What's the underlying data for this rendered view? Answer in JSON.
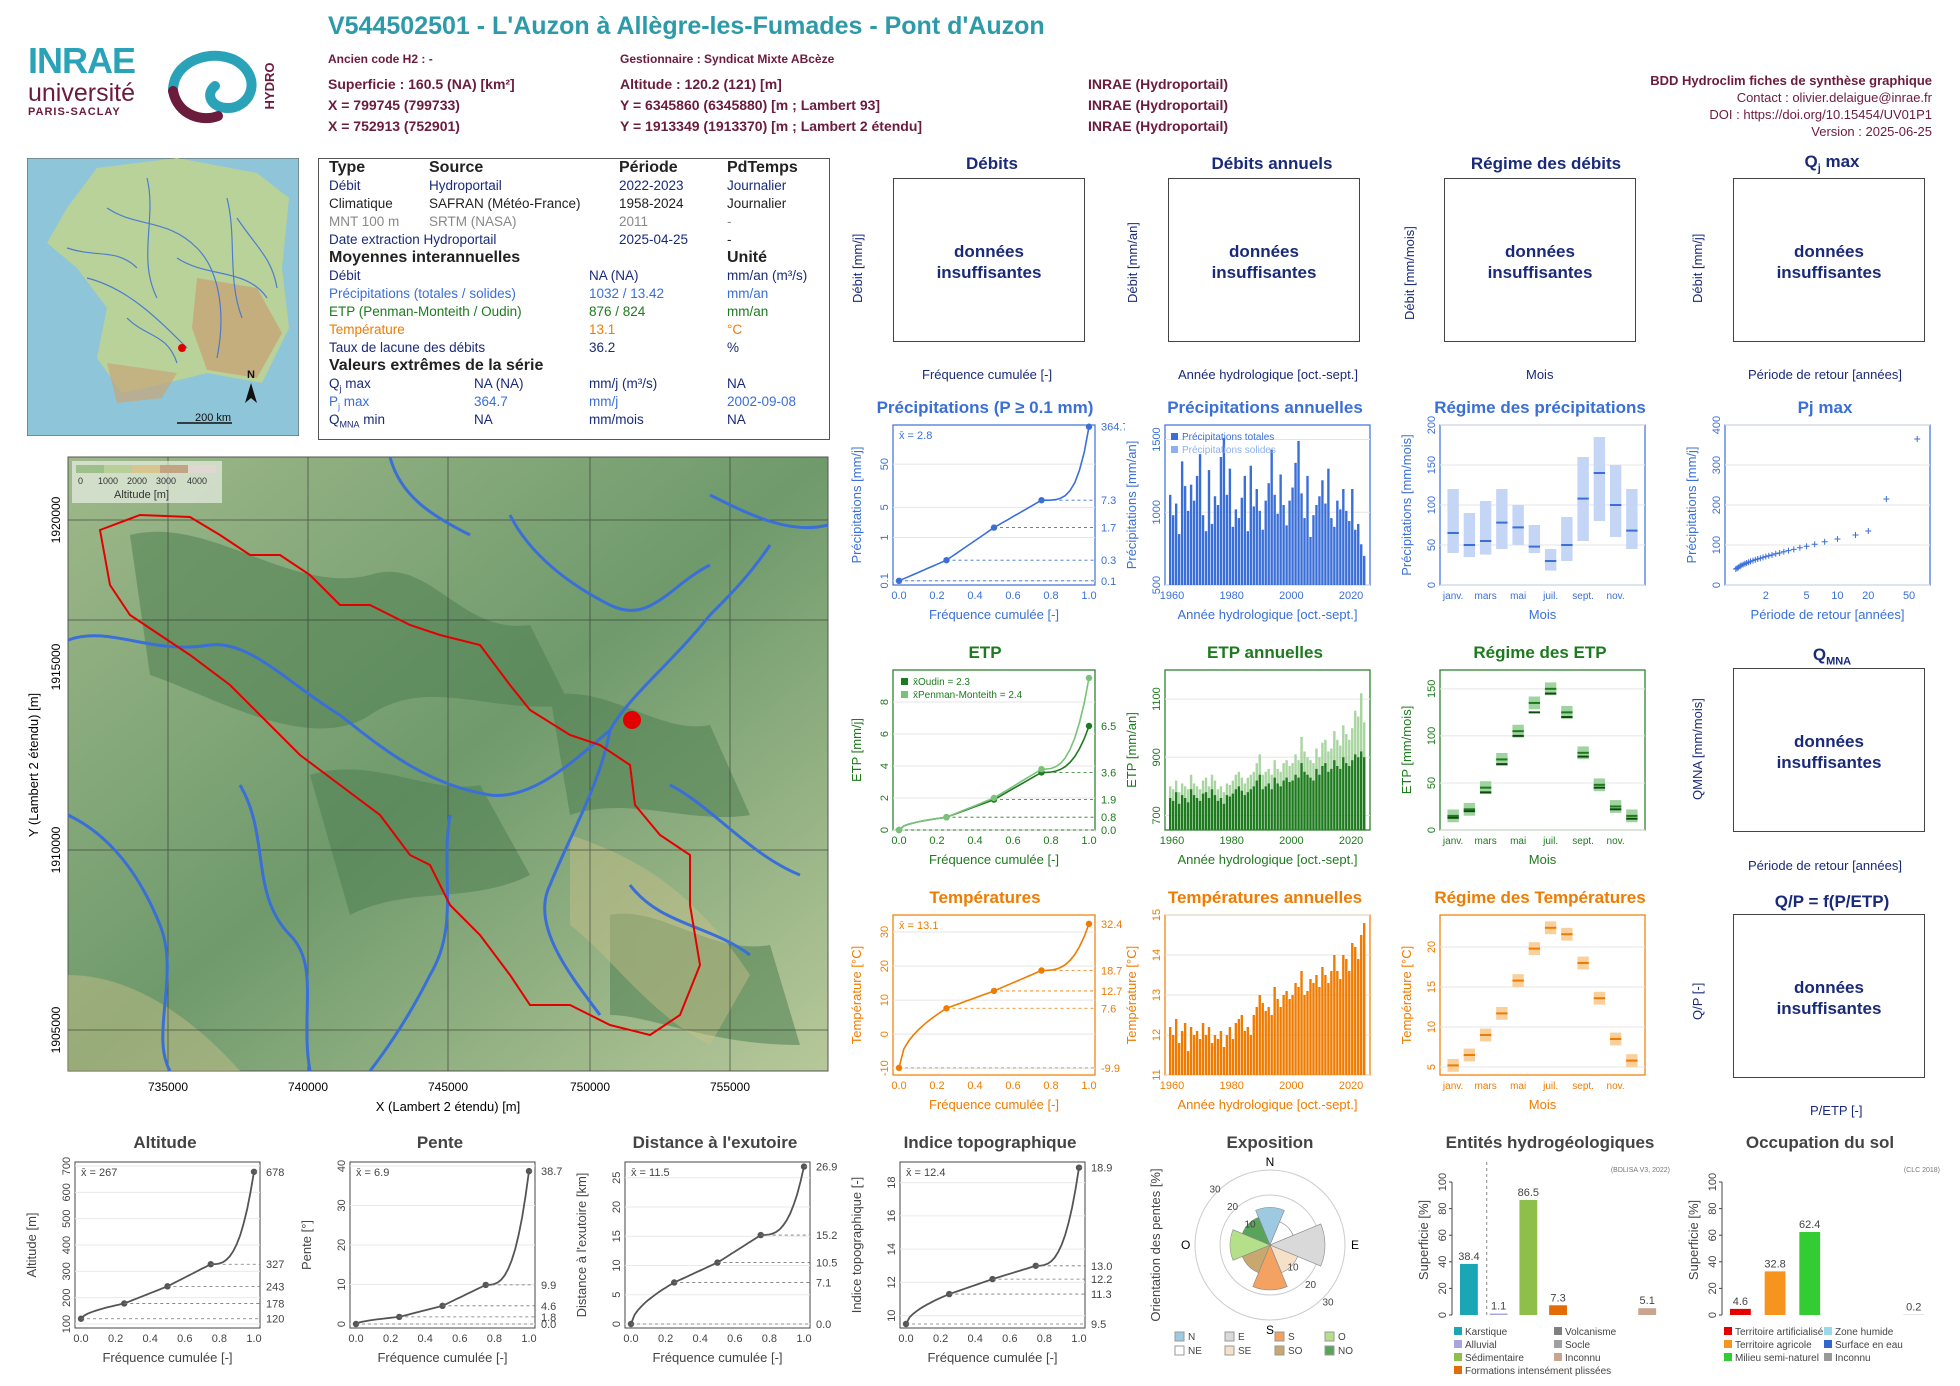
{
  "station": {
    "title": "V544502501 - L'Auzon à Allègre-les-Fumades - Pont d'Auzon",
    "ancien_code": "Ancien code H2 : -",
    "gestionnaire": "Gestionnaire : Syndicat Mixte ABcèze",
    "superficie": "Superficie : 160.5 (NA) [km²]",
    "altitude": "Altitude : 120.2 (121) [m]",
    "x93": "X = 799745 (799733)",
    "y93": "Y = 6345860 (6345880) [m ; Lambert 93]",
    "x2e": "X = 752913 (752901)",
    "y2e": "Y = 1913349 (1913370) [m ; Lambert 2 étendu]",
    "src1": "INRAE (Hydroportail)",
    "src2": "INRAE (Hydroportail)",
    "src3": "INRAE (Hydroportail)"
  },
  "logos": {
    "inrae": "INRAE",
    "univ": "université",
    "univ2": "PARIS-SACLAY",
    "hydro": "HYDRO"
  },
  "credits": {
    "l1": "BDD Hydroclim fiches de synthèse graphique",
    "l2": "Contact : olivier.delaigue@inrae.fr",
    "l3": "DOI : https://doi.org/10.15454/UV01P1",
    "l4": "Version : 2025-06-25"
  },
  "minimap": {
    "scale": "200 km",
    "north": "N"
  },
  "info": {
    "headers": [
      "Type",
      "Source",
      "Période",
      "PdTemps"
    ],
    "rows": [
      [
        "Débit",
        "Hydroportail",
        "2022-2023",
        "Journalier"
      ],
      [
        "Climatique",
        "SAFRAN (Météo-France)",
        "1958-2024",
        "Journalier"
      ],
      [
        "MNT 100 m",
        "SRTM (NASA)",
        "2011",
        "-"
      ],
      [
        "Date extraction Hydroportail",
        "",
        "2025-04-25",
        "-"
      ]
    ],
    "moy_title": "Moyennes interannuelles",
    "unite": "Unité",
    "moy": [
      [
        "Débit",
        "NA (NA)",
        "mm/an (m³/s)"
      ],
      [
        "Précipitations (totales / solides)",
        "1032 / 13.42",
        "mm/an"
      ],
      [
        "ETP (Penman-Monteith / Oudin)",
        "876 / 824",
        "mm/an"
      ],
      [
        "Température",
        "13.1",
        "°C"
      ],
      [
        "Taux de lacune des débits",
        "36.2",
        "%"
      ]
    ],
    "ext_title": "Valeurs extrêmes de la série",
    "ext": [
      [
        "Q",
        "j",
        " max",
        "NA (NA)",
        "mm/j (m³/s)",
        "NA"
      ],
      [
        "P",
        "j",
        " max",
        "364.7",
        "mm/j",
        "2002-09-08"
      ],
      [
        "Q",
        "MNA",
        " min",
        "NA",
        "mm/mois",
        "NA"
      ]
    ]
  },
  "map": {
    "legend_title": "Altitude [m]",
    "legend_ticks": [
      "0",
      "1000",
      "2000",
      "3000",
      "4000"
    ],
    "xlabel": "X (Lambert 2 étendu) [m]",
    "ylabel": "Y (Lambert 2 étendu) [m]",
    "xticks": [
      "735000",
      "740000",
      "745000",
      "750000",
      "755000"
    ],
    "yticks": [
      "1920000",
      "1915000",
      "1910000",
      "1905000"
    ]
  },
  "nodata_msg": [
    "données",
    "insuffisantes"
  ],
  "panels_top": [
    {
      "title": "Débits",
      "ylabel": "Débit [mm/j]",
      "xlabel": "Fréquence cumulée [-]"
    },
    {
      "title": "Débits annuels",
      "ylabel": "Débit [mm/an]",
      "xlabel": "Année hydrologique [oct.-sept.]"
    },
    {
      "title": "Régime des débits",
      "ylabel": "Débit [mm/mois]",
      "xlabel": "Mois"
    },
    {
      "title": "Qj max",
      "ylabel": "Débit [mm/j]",
      "xlabel": "Période de retour [années]"
    }
  ],
  "qmna": {
    "title": "QMNA",
    "ylabel": "QMNA [mm/mois]",
    "xlabel": "Période de retour [années]"
  },
  "qp": {
    "title": "Q/P = f(P/ETP)",
    "ylabel": "Q/P [-]",
    "xlabel": "P/ETP [-]"
  },
  "chart_data": [
    {
      "type": "line",
      "title": "Précipitations (P ≥ 0.1 mm)",
      "xlabel": "Fréquence cumulée [-]",
      "ylabel": "Précipitations [mm/j]",
      "scale": "log",
      "mean_label": "x̄ = 2.8",
      "x": [
        0,
        0.25,
        0.5,
        0.75,
        1.0
      ],
      "y": [
        0.1,
        0.3,
        1.7,
        7.3,
        364.7
      ],
      "yticks": [
        0.1,
        1,
        5,
        50
      ],
      "right_labels": [
        "364.7",
        "7.3",
        "1.7",
        "0.3",
        "0.1"
      ]
    },
    {
      "type": "bar",
      "title": "Précipitations annuelles",
      "xlabel": "Année hydrologique [oct.-sept.]",
      "ylabel": "Précipitations [mm/an]",
      "legend": [
        "Précipitations totales",
        "Précipitations solides"
      ],
      "x_start": 1959,
      "values": [
        1120,
        980,
        1060,
        850,
        1350,
        1180,
        1010,
        1190,
        1080,
        1250,
        1400,
        980,
        870,
        1290,
        920,
        1110,
        1050,
        1380,
        1510,
        1120,
        1300,
        900,
        1020,
        960,
        1100,
        1250,
        870,
        1320,
        1040,
        1160,
        1010,
        880,
        1080,
        1200,
        1430,
        1120,
        990,
        1260,
        1050,
        910,
        1080,
        1170,
        1340,
        1490,
        1130,
        960,
        1250,
        830,
        980,
        1050,
        1110,
        1220,
        1060,
        1300,
        960,
        900,
        1080,
        1020,
        1160,
        1010,
        940,
        1160,
        880,
        920,
        780,
        700
      ],
      "ylim": [
        500,
        1600
      ],
      "yticks": [
        500,
        1000,
        1500
      ],
      "xticks": [
        1960,
        1980,
        2000,
        2020
      ]
    },
    {
      "type": "box",
      "title": "Régime des précipitations",
      "xlabel": "Mois",
      "ylabel": "Précipitations [mm/mois]",
      "categories": [
        "janv.",
        "févr.",
        "mars",
        "avr.",
        "mai",
        "juin",
        "juil.",
        "août",
        "sept.",
        "oct.",
        "nov.",
        "déc."
      ],
      "tick_labels": [
        "janv.",
        "mars",
        "mai",
        "juil.",
        "sept.",
        "nov."
      ],
      "q1": [
        40,
        35,
        38,
        45,
        50,
        40,
        18,
        30,
        55,
        80,
        60,
        45
      ],
      "median": [
        65,
        50,
        55,
        78,
        72,
        48,
        30,
        50,
        108,
        140,
        100,
        68
      ],
      "q3": [
        120,
        90,
        105,
        120,
        100,
        75,
        45,
        85,
        160,
        185,
        150,
        120
      ],
      "ylim": [
        0,
        200
      ],
      "yticks": [
        0,
        50,
        100,
        150,
        200
      ]
    },
    {
      "type": "scatter",
      "title": "Pj max",
      "xlabel": "Période de retour [années]",
      "ylabel": "Précipitations [mm/j]",
      "x": [
        1.02,
        1.05,
        1.08,
        1.12,
        1.15,
        1.2,
        1.25,
        1.3,
        1.36,
        1.42,
        1.5,
        1.58,
        1.67,
        1.77,
        1.88,
        2.0,
        2.14,
        2.3,
        2.5,
        2.73,
        3.0,
        3.33,
        3.75,
        4.3,
        5.0,
        6.0,
        7.5,
        10,
        15,
        20,
        30,
        60
      ],
      "y": [
        40,
        42,
        44,
        47,
        49,
        51,
        53,
        55,
        57,
        59,
        61,
        63,
        65,
        67,
        69,
        71,
        73,
        75,
        78,
        80,
        83,
        86,
        89,
        93,
        97,
        102,
        108,
        115,
        125,
        135,
        215,
        365
      ],
      "ylim": [
        0,
        400
      ],
      "yticks": [
        0,
        100,
        200,
        300,
        400
      ],
      "xticks": [
        2,
        5,
        10,
        20,
        50
      ]
    },
    {
      "type": "line",
      "title": "ETP",
      "xlabel": "Fréquence cumulée [-]",
      "ylabel": "ETP [mm/j]",
      "legend": [
        "x̄Oudin = 2.3",
        "x̄Penman-Monteith = 2.4"
      ],
      "series": [
        {
          "name": "Oudin",
          "x": [
            0,
            0.25,
            0.5,
            0.75,
            1.0
          ],
          "y": [
            0.0,
            0.8,
            1.9,
            3.6,
            6.5
          ]
        },
        {
          "name": "Penman-Monteith",
          "x": [
            0,
            0.25,
            0.5,
            0.75,
            1.0
          ],
          "y": [
            0.0,
            0.8,
            2.0,
            3.8,
            9.5
          ]
        }
      ],
      "ylim": [
        0,
        10
      ],
      "yticks": [
        0,
        2,
        4,
        6,
        8
      ],
      "right_labels": [
        "6.5",
        "3.6",
        "1.9",
        "0.8",
        "0.0"
      ]
    },
    {
      "type": "bar",
      "title": "ETP annuelles",
      "xlabel": "Année hydrologique [oct.-sept.]",
      "ylabel": "ETP [mm/an]",
      "x_start": 1959,
      "values": [
        760,
        750,
        780,
        740,
        770,
        760,
        745,
        790,
        770,
        760,
        750,
        775,
        780,
        760,
        790,
        770,
        750,
        760,
        740,
        770,
        765,
        775,
        790,
        800,
        785,
        770,
        780,
        790,
        800,
        820,
        840,
        790,
        800,
        810,
        790,
        830,
        810,
        800,
        820,
        830,
        815,
        820,
        840,
        830,
        880,
        850,
        840,
        830,
        820,
        860,
        840,
        870,
        880,
        850,
        860,
        890,
        870,
        860,
        900,
        880,
        870,
        890,
        910,
        900,
        920,
        900
      ],
      "values2": [
        800,
        790,
        820,
        780,
        810,
        800,
        790,
        840,
        810,
        800,
        790,
        820,
        830,
        800,
        840,
        820,
        790,
        800,
        780,
        810,
        805,
        820,
        840,
        850,
        830,
        810,
        830,
        840,
        850,
        880,
        910,
        840,
        850,
        860,
        840,
        890,
        860,
        850,
        880,
        890,
        870,
        880,
        910,
        890,
        970,
        920,
        900,
        890,
        880,
        930,
        900,
        950,
        960,
        920,
        930,
        990,
        960,
        940,
        1010,
        980,
        960,
        1000,
        1060,
        1040,
        1120,
        1020
      ],
      "ylim": [
        650,
        1200
      ],
      "yticks": [
        700,
        900,
        1100
      ],
      "xticks": [
        1960,
        1980,
        2000,
        2020
      ]
    },
    {
      "type": "box",
      "title": "Régime des ETP",
      "xlabel": "Mois",
      "ylabel": "ETP [mm/mois]",
      "categories": [
        "janv.",
        "févr.",
        "mars",
        "avr.",
        "mai",
        "juin",
        "juil.",
        "août",
        "sept.",
        "oct.",
        "nov.",
        "déc."
      ],
      "tick_labels": [
        "janv.",
        "mars",
        "mai",
        "juil.",
        "sept.",
        "nov."
      ],
      "median": [
        15,
        22,
        45,
        75,
        105,
        135,
        150,
        125,
        82,
        48,
        25,
        15
      ],
      "median2": [
        13,
        20,
        40,
        70,
        100,
        125,
        145,
        120,
        78,
        45,
        22,
        12
      ],
      "ylim": [
        0,
        170
      ],
      "yticks": [
        0,
        50,
        100,
        150
      ]
    },
    {
      "type": "line",
      "title": "Températures",
      "xlabel": "Fréquence cumulée [-]",
      "ylabel": "Température [°C]",
      "mean_label": "x̄ = 13.1",
      "x": [
        0,
        0.25,
        0.5,
        0.75,
        1.0
      ],
      "y": [
        -9.9,
        7.6,
        12.7,
        18.7,
        32.4
      ],
      "ylim": [
        -12,
        35
      ],
      "yticks": [
        -10,
        0,
        10,
        20,
        30
      ],
      "right_labels": [
        "32.4",
        "18.7",
        "12.7",
        "7.6",
        "-9.9"
      ]
    },
    {
      "type": "bar",
      "title": "Températures annuelles",
      "xlabel": "Année hydrologique [oct.-sept.]",
      "ylabel": "Température [°C]",
      "x_start": 1959,
      "values": [
        12.2,
        12.0,
        12.4,
        11.8,
        12.1,
        12.3,
        11.6,
        12.2,
        12.0,
        12.1,
        11.9,
        12.3,
        12.0,
        12.2,
        11.8,
        12.0,
        11.9,
        12.1,
        11.7,
        12.0,
        12.2,
        11.9,
        12.3,
        12.4,
        12.5,
        12.1,
        12.2,
        12.0,
        12.5,
        12.7,
        13.0,
        12.8,
        12.6,
        12.7,
        12.5,
        13.2,
        12.9,
        12.7,
        13.0,
        13.1,
        12.9,
        13.0,
        13.3,
        13.2,
        13.6,
        13.0,
        13.1,
        13.4,
        13.3,
        13.5,
        13.2,
        13.7,
        13.5,
        13.3,
        13.6,
        14.0,
        13.6,
        13.4,
        14.0,
        13.9,
        13.6,
        14.3,
        14.2,
        13.9,
        14.5,
        14.8
      ],
      "ylim": [
        11,
        15
      ],
      "yticks": [
        11,
        12,
        13,
        14,
        15
      ],
      "xticks": [
        1960,
        1980,
        2000,
        2020
      ]
    },
    {
      "type": "box",
      "title": "Régime des Températures",
      "xlabel": "Mois",
      "ylabel": "Température [°C]",
      "categories": [
        "janv.",
        "févr.",
        "mars",
        "avr.",
        "mai",
        "juin",
        "juil.",
        "août",
        "sept.",
        "oct.",
        "nov.",
        "déc."
      ],
      "tick_labels": [
        "janv.",
        "mars",
        "mai",
        "juil.",
        "sept.",
        "nov."
      ],
      "median": [
        5.2,
        6.5,
        9.0,
        11.7,
        15.8,
        19.8,
        22.4,
        21.6,
        18.0,
        13.6,
        8.5,
        5.8
      ],
      "ylim": [
        4,
        24
      ],
      "yticks": [
        5,
        10,
        15,
        20
      ]
    },
    {
      "type": "line",
      "title": "Altitude",
      "xlabel": "Fréquence cumulée [-]",
      "ylabel": "Altitude [m]",
      "mean_label": "x̄ = 267",
      "x": [
        0,
        0.25,
        0.5,
        0.75,
        1.0
      ],
      "y": [
        120,
        178,
        243,
        327,
        678
      ],
      "ylim": [
        100,
        700
      ],
      "yticks": [
        100,
        200,
        300,
        400,
        500,
        600,
        700
      ],
      "right_labels": [
        "678",
        "327",
        "243",
        "178",
        "120"
      ]
    },
    {
      "type": "line",
      "title": "Pente",
      "xlabel": "Fréquence cumulée [-]",
      "ylabel": "Pente [°]",
      "mean_label": "x̄ = 6.9",
      "x": [
        0,
        0.25,
        0.5,
        0.75,
        1.0
      ],
      "y": [
        0.0,
        1.8,
        4.6,
        9.9,
        38.7
      ],
      "ylim": [
        0,
        40
      ],
      "yticks": [
        0,
        10,
        20,
        30,
        40
      ],
      "right_labels": [
        "38.7",
        "9.9",
        "4.6",
        "1.8",
        "0.0"
      ]
    },
    {
      "type": "line",
      "title": "Distance à l'exutoire",
      "xlabel": "Fréquence cumulée [-]",
      "ylabel": "Distance à l'exutoire [km]",
      "mean_label": "x̄ = 11.5",
      "x": [
        0,
        0.25,
        0.5,
        0.75,
        1.0
      ],
      "y": [
        0.0,
        7.1,
        10.5,
        15.2,
        26.9
      ],
      "ylim": [
        0,
        27
      ],
      "yticks": [
        0,
        5,
        10,
        15,
        20,
        25
      ],
      "right_labels": [
        "26.9",
        "15.2",
        "10.5",
        "7.1",
        "0.0"
      ]
    },
    {
      "type": "line",
      "title": "Indice topographique",
      "xlabel": "Fréquence cumulée [-]",
      "ylabel": "Indice topographique [-]",
      "mean_label": "x̄ = 12.4",
      "x": [
        0,
        0.25,
        0.5,
        0.75,
        1.0
      ],
      "y": [
        9.5,
        11.3,
        12.2,
        13.0,
        18.9
      ],
      "ylim": [
        9.5,
        19
      ],
      "yticks": [
        10,
        12,
        14,
        16,
        18
      ],
      "right_labels": [
        "18.9",
        "13.0",
        "12.2",
        "11.3",
        "9.5"
      ]
    },
    {
      "type": "pie",
      "title": "Exposition",
      "ylabel": "Orientation des pentes [%]",
      "categories": [
        "N",
        "NE",
        "E",
        "SE",
        "S",
        "SO",
        "O",
        "NO"
      ],
      "values": [
        15,
        10,
        22,
        12,
        18,
        12,
        16,
        12
      ],
      "colors": [
        "#9ecae1",
        "#ffffff",
        "#d9d9d9",
        "#f4e1c8",
        "#f4a261",
        "#c8a86e",
        "#b5e08a",
        "#5aa35a"
      ],
      "rings": [
        "10",
        "20",
        "30"
      ],
      "compass": [
        "N",
        "E",
        "S",
        "O"
      ]
    },
    {
      "type": "bar",
      "title": "Entités hydrogéologiques",
      "ylabel": "Superficie [%]",
      "source": "(BDLISA V3, 2022)",
      "categories": [
        "Karstique",
        "Alluvial",
        "Sédimentaire",
        "Formations intensément plissées",
        "Volcanisme",
        "Socle",
        "Inconnu"
      ],
      "values": [
        38.4,
        1.1,
        86.5,
        7.3,
        0,
        0,
        5.1
      ],
      "value_labels": [
        "38.4",
        "1.1",
        "86.5",
        "7.3",
        "",
        "",
        "5.1"
      ],
      "colors": [
        "#1aa7b5",
        "#a6a6dc",
        "#8dbf4a",
        "#e36c09",
        "#7f7f7f",
        "#a0a0a0",
        "#c9a58f"
      ],
      "ylim": [
        0,
        100
      ],
      "yticks": [
        0,
        20,
        40,
        60,
        80,
        100
      ]
    },
    {
      "type": "bar",
      "title": "Occupation du sol",
      "ylabel": "Superficie [%]",
      "source": "(CLC 2018)",
      "categories": [
        "Territoire artificialisé",
        "Territoire agricole",
        "Milieu semi-naturel",
        "Zone humide",
        "Surface en eau",
        "Inconnu"
      ],
      "values": [
        4.6,
        32.8,
        62.4,
        0,
        0,
        0.2
      ],
      "value_labels": [
        "4.6",
        "32.8",
        "62.4",
        "",
        "",
        "0.2"
      ],
      "colors": [
        "#e60000",
        "#f7941d",
        "#33cc33",
        "#99d9ea",
        "#3366cc",
        "#999999"
      ],
      "ylim": [
        0,
        100
      ],
      "yticks": [
        0,
        20,
        40,
        60,
        80,
        100
      ]
    }
  ]
}
